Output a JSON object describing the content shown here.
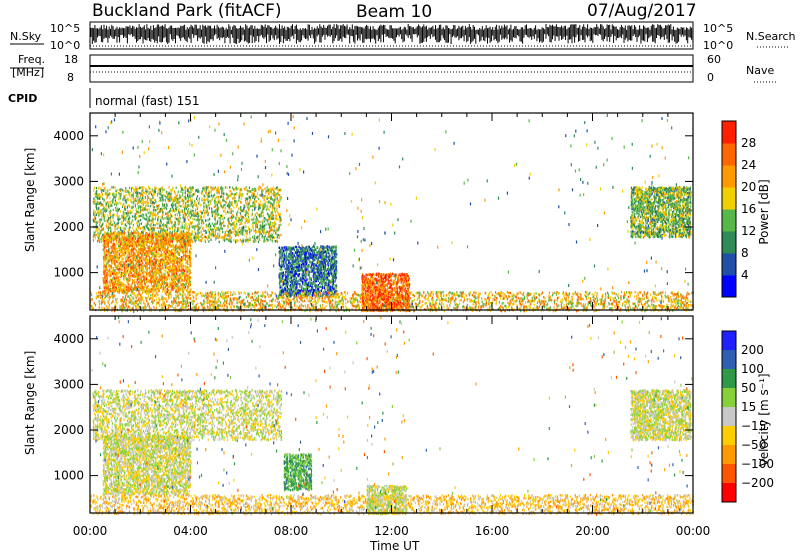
{
  "header": {
    "station": "Buckland Park (fitACF)",
    "beam": "Beam 10",
    "date": "07/Aug/2017"
  },
  "strips": {
    "nsky_label": "N.Sky",
    "nsearch_label": "N.Search",
    "noise_ticks": [
      "10^5",
      "10^0"
    ],
    "freq_label": "Freq.",
    "freq_unit": "[MHz]",
    "freq_ticks": [
      "18",
      "8"
    ],
    "nave_label": "Nave",
    "nave_ticks": [
      "60",
      "0"
    ],
    "cpid_label": "CPID",
    "cpid_value": "normal (fast) 151"
  },
  "colors": {
    "power_scale": [
      "#0000ff",
      "#1f4fa8",
      "#2e8a57",
      "#56b847",
      "#f0d000",
      "#ff9900",
      "#ff6600",
      "#ff2000"
    ],
    "velocity_scale": [
      "#2020ff",
      "#2e5fb0",
      "#2e9a48",
      "#86d13a",
      "#c8c8c8",
      "#ffcc00",
      "#ff9900",
      "#ff5500",
      "#ff0000"
    ]
  },
  "chart_data": [
    {
      "type": "heatmap",
      "panel": "power",
      "ylabel": "Slant Range [km]",
      "xlabel": "Time UT",
      "xlim_hours": [
        0,
        24
      ],
      "x_ticks": [
        "00:00",
        "04:00",
        "08:00",
        "12:00",
        "16:00",
        "20:00",
        "00:00"
      ],
      "ylim_km": [
        180,
        4500
      ],
      "y_ticks": [
        1000,
        2000,
        3000,
        4000
      ],
      "colorbar": {
        "label": "Power [dB]",
        "range": [
          0,
          32
        ],
        "ticks": [
          4,
          8,
          12,
          16,
          20,
          24,
          28
        ]
      },
      "echo_regions": [
        {
          "t0": 0.1,
          "t1": 7.6,
          "r0": 1700,
          "r1": 2900,
          "level": 16
        },
        {
          "t0": 0.5,
          "t1": 4.0,
          "r0": 600,
          "r1": 1900,
          "level": 22
        },
        {
          "t0": 7.5,
          "t1": 9.8,
          "r0": 500,
          "r1": 1600,
          "level": 8
        },
        {
          "t0": 0.0,
          "t1": 24.0,
          "r0": 180,
          "r1": 600,
          "level": 20
        },
        {
          "t0": 10.8,
          "t1": 12.7,
          "r0": 180,
          "r1": 1000,
          "level": 26
        },
        {
          "t0": 21.5,
          "t1": 23.9,
          "r0": 1800,
          "r1": 2900,
          "level": 14
        }
      ]
    },
    {
      "type": "heatmap",
      "panel": "velocity",
      "ylabel": "Slant Range [km]",
      "xlabel": "Time UT",
      "xlim_hours": [
        0,
        24
      ],
      "x_ticks": [
        "00:00",
        "04:00",
        "08:00",
        "12:00",
        "16:00",
        "20:00",
        "00:00"
      ],
      "ylim_km": [
        180,
        4500
      ],
      "y_ticks": [
        1000,
        2000,
        3000,
        4000
      ],
      "colorbar": {
        "label": "Velocity [m s⁻¹]",
        "ticks": [
          "200",
          "100",
          "50",
          "15",
          "−15",
          "−50",
          "−100",
          "−200"
        ]
      },
      "echo_regions": [
        {
          "t0": 0.1,
          "t1": 7.6,
          "r0": 1800,
          "r1": 2900,
          "velocity": 0
        },
        {
          "t0": 0.5,
          "t1": 4.0,
          "r0": 600,
          "r1": 1900,
          "velocity": 0
        },
        {
          "t0": 7.7,
          "t1": 8.8,
          "r0": 700,
          "r1": 1500,
          "velocity": 60
        },
        {
          "t0": 0.0,
          "t1": 24.0,
          "r0": 180,
          "r1": 600,
          "velocity": -40
        },
        {
          "t0": 11.0,
          "t1": 12.6,
          "r0": 180,
          "r1": 800,
          "velocity": 0
        },
        {
          "t0": 21.5,
          "t1": 23.9,
          "r0": 1800,
          "r1": 2900,
          "velocity": 0
        }
      ]
    }
  ]
}
